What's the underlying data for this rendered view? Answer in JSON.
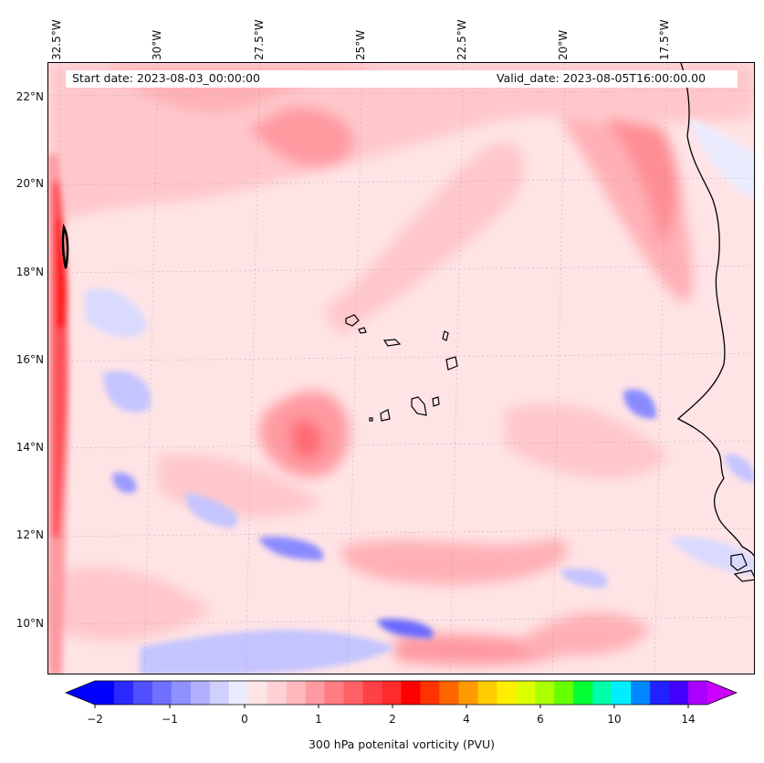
{
  "map": {
    "start_date": "Start date: 2023-08-03_00:00:00",
    "valid_date": "Valid_date: 2023-08-05T16:00:00.00",
    "lon_labels": [
      "32.5°W",
      "30°W",
      "27.5°W",
      "25°W",
      "22.5°W",
      "20°W",
      "17.5°W"
    ],
    "lat_labels": [
      "22°N",
      "20°N",
      "18°N",
      "16°N",
      "14°N",
      "12°N",
      "10°N"
    ],
    "extent": {
      "lon_min": -33.0,
      "lon_max": -15.6,
      "lat_min": 8.9,
      "lat_max": 22.8
    }
  },
  "colorbar": {
    "label": "300 hPa potenital vorticity (PVU)",
    "tick_labels": [
      "−2",
      "−1",
      "0",
      "1",
      "2",
      "4",
      "6",
      "10",
      "14"
    ],
    "colors": [
      "#0000ff",
      "#2a2aff",
      "#5050ff",
      "#7070ff",
      "#9090ff",
      "#b0b0ff",
      "#d0d0ff",
      "#ececff",
      "#ffe4e6",
      "#ffd0d4",
      "#ffb8bd",
      "#ff9aa0",
      "#ff7c82",
      "#ff6066",
      "#ff4046",
      "#ff2a2a",
      "#ff0000",
      "#ff3300",
      "#ff6600",
      "#ff9900",
      "#ffcc00",
      "#ffee00",
      "#ddff00",
      "#aaff00",
      "#66ff00",
      "#00ff33",
      "#00ffaa",
      "#00eeff",
      "#0088ff",
      "#2222ff",
      "#4400ff",
      "#aa00ff"
    ],
    "under_color": "#0000ff",
    "over_color": "#cc00ff"
  }
}
